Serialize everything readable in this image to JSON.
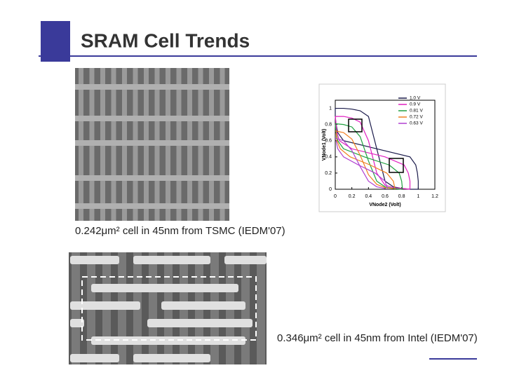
{
  "title": "SRAM Cell Trends",
  "figures": [
    {
      "caption": "0.242μm² cell in 45nm from TSMC (IEDM'07)"
    },
    {
      "caption": "0.346μm² cell in 45nm from Intel (IEDM'07)"
    }
  ],
  "chart_data": {
    "type": "line",
    "x_label": "VNode2 (Volt)",
    "y_label": "VNode1 (Volt)",
    "x": [
      0,
      0.1,
      0.2,
      0.3,
      0.4,
      0.5,
      0.6,
      0.7,
      0.8,
      0.9,
      1.0
    ],
    "series": [
      {
        "name": "1.0 V",
        "color": "#1a1a4a",
        "values": [
          1,
          1,
          0.99,
          0.97,
          0.9,
          0.5,
          0.1,
          0.03,
          0.01,
          0,
          0
        ]
      },
      {
        "name": "0.9 V",
        "color": "#e020c0",
        "values": [
          0.9,
          0.9,
          0.88,
          0.83,
          0.6,
          0.2,
          0.05,
          0.02,
          0.01,
          0,
          null
        ]
      },
      {
        "name": "0.81 V",
        "color": "#20a040",
        "values": [
          0.81,
          0.8,
          0.77,
          0.65,
          0.35,
          0.1,
          0.03,
          0.01,
          0,
          null,
          null
        ]
      },
      {
        "name": "0.72 V",
        "color": "#f08020",
        "values": [
          0.72,
          0.7,
          0.62,
          0.42,
          0.18,
          0.06,
          0.02,
          0.01,
          null,
          null,
          null
        ]
      },
      {
        "name": "0.63 V",
        "color": "#b040d0",
        "values": [
          0.63,
          0.6,
          0.48,
          0.28,
          0.1,
          0.03,
          0.01,
          null,
          null,
          null,
          null
        ]
      }
    ],
    "xlim": [
      0,
      1.2
    ],
    "ylim": [
      0,
      1.1
    ],
    "xticks": [
      0,
      0.2,
      0.4,
      0.6,
      0.8,
      1,
      1.2
    ],
    "yticks": [
      0,
      0.2,
      0.4,
      0.6,
      0.8,
      1
    ]
  }
}
